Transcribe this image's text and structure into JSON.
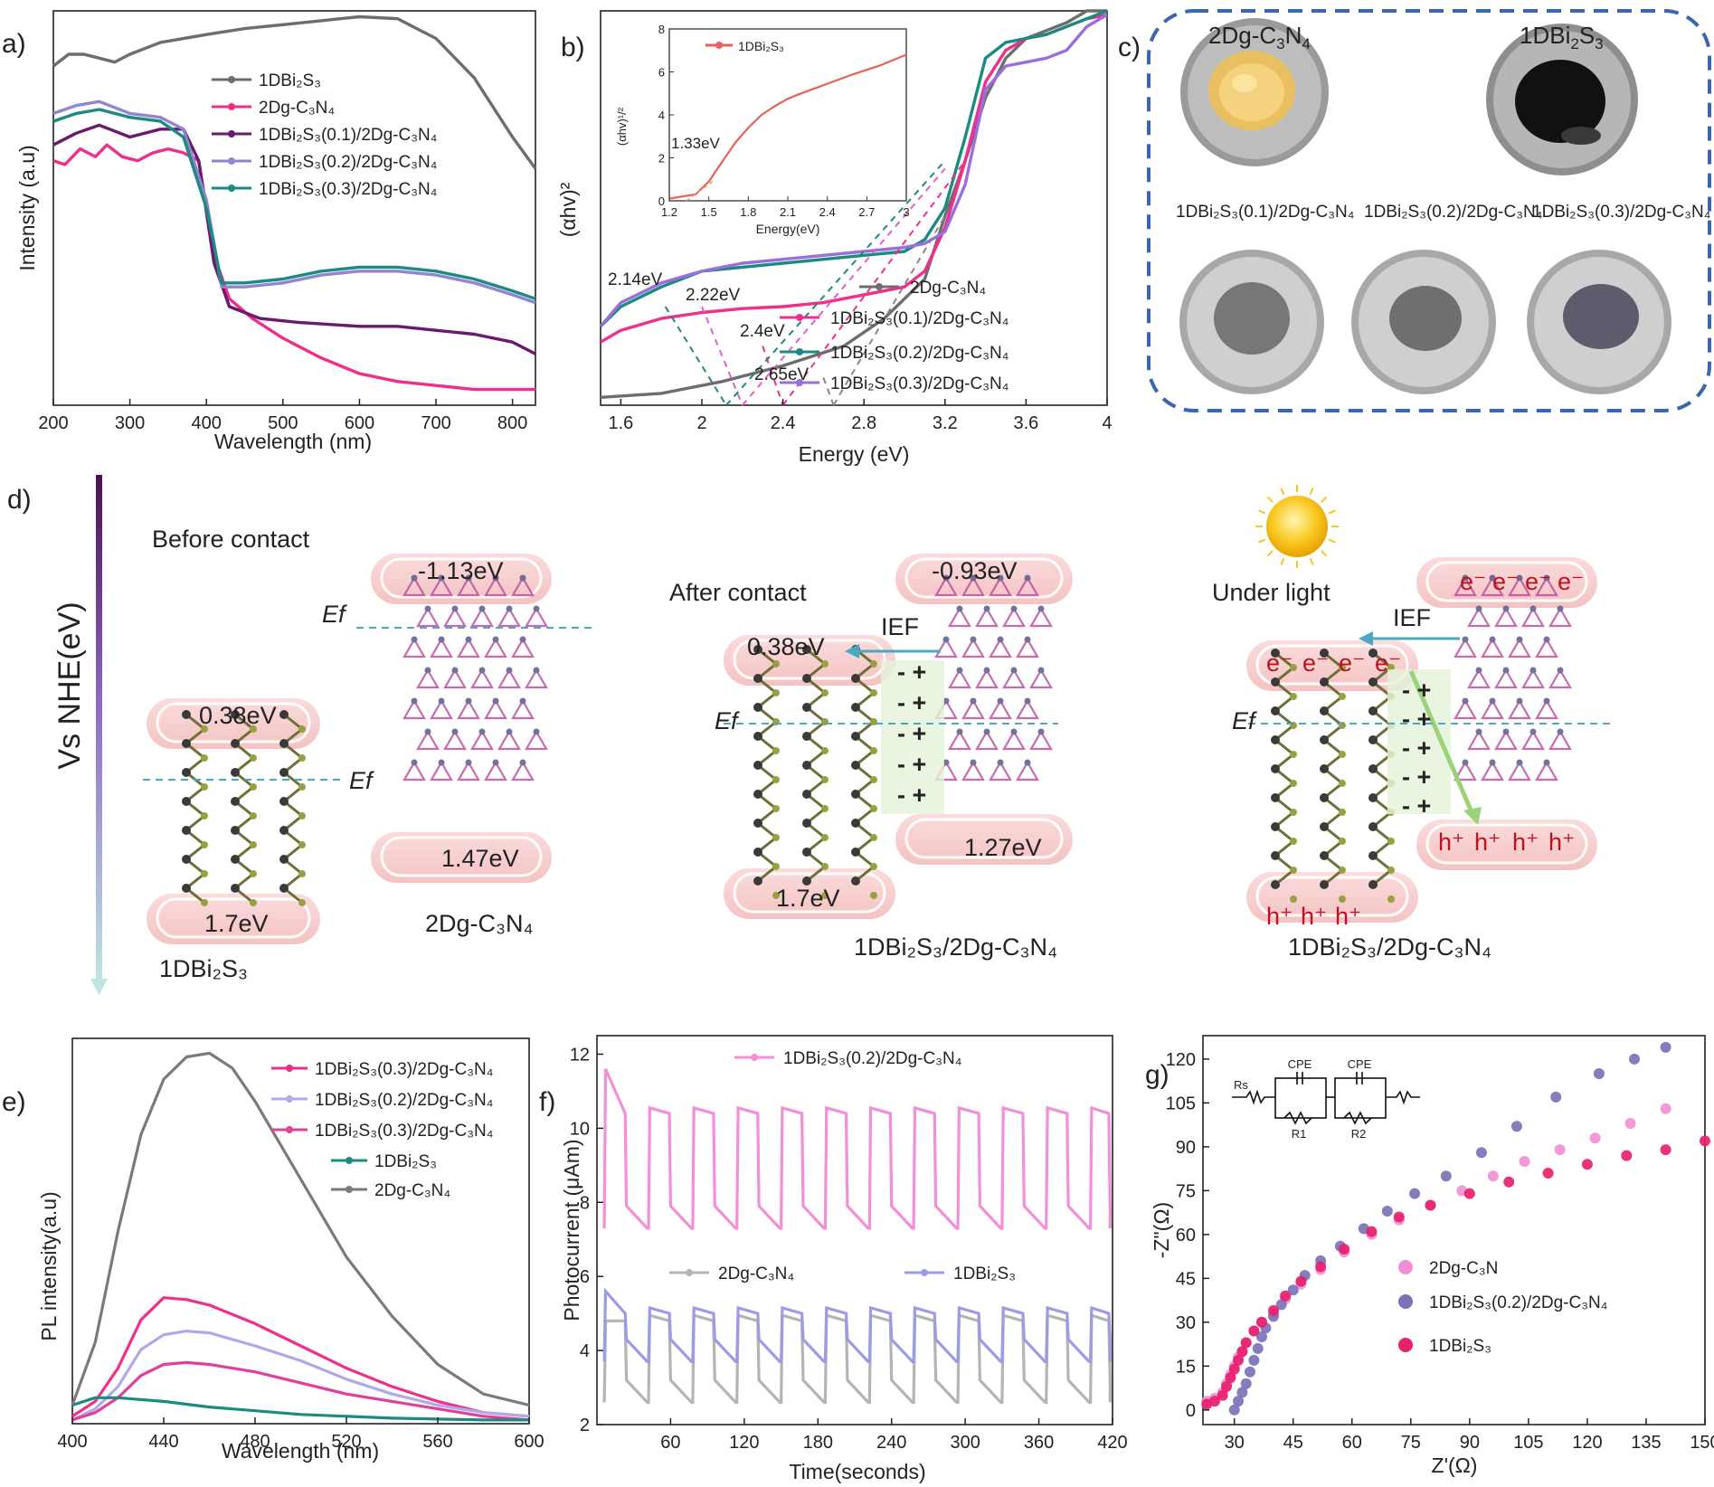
{
  "panels": {
    "a": "a)",
    "b": "b)",
    "c": "c)",
    "d": "d)",
    "e": "e)",
    "f": "f)",
    "g": "g)"
  },
  "colors": {
    "grey": "#6d6d6d",
    "pink": "#ef2f8b",
    "purple": "#6a1a6e",
    "lavender": "#8f86cf",
    "teal": "#1c8a80",
    "light_pink": "#f28fd6",
    "light_grey": "#b4b4b4",
    "light_purple": "#9b9be6",
    "mauve": "#7a73b8",
    "blue": "#3a66ad",
    "cyan": "#4aa8c0",
    "red": "#c0101e"
  },
  "panelA": {
    "xlabel": "Wavelength (nm)",
    "ylabel": "Intensity (a.u)"
  },
  "panelB": {
    "xlabel": "Energy (eV)",
    "ylabel": "(αhv)²",
    "annotations": [
      "2.14eV",
      "2.22eV",
      "2.4eV",
      "2.65eV"
    ],
    "inset": {
      "legend": "1DBi₂S₃",
      "ylabel": "(αhv)¹/²",
      "xlabel": "Energy(eV)",
      "annotation": "1.33eV"
    }
  },
  "panelC": {
    "photos": [
      "2Dg-C₃N₄",
      "1DBi₂S₃",
      "1DBi₂S₃(0.1)/2Dg-C₃N₄",
      "1DBi₂S₃(0.2)/2Dg-C₃N₄",
      "1DBi₂S₃(0.3)/2Dg-C₃N₄"
    ]
  },
  "panelD": {
    "axis_label": "Vs NHE(eV)",
    "before_contact": "Before contact",
    "after_contact": "After contact",
    "under_light": "Under light",
    "ief": "IEF",
    "ef": "Ef",
    "levels": {
      "bi2s3_cb": "0.38eV",
      "bi2s3_vb": "1.7eV",
      "c3n4_cb_before": "-1.13eV",
      "c3n4_vb_before": "1.47eV",
      "c3n4_cb_after": "-0.93eV",
      "c3n4_vb_after": "1.27eV"
    },
    "labels": {
      "bi2s3": "1DBi₂S₃",
      "c3n4": "2Dg-C₃N₄",
      "composite": "1DBi₂S₃/2Dg-C₃N₄"
    },
    "carriers": {
      "electron": "e⁻",
      "hole": "h⁺"
    }
  },
  "panelE": {
    "xlabel": "Wavelength (nm)",
    "ylabel": "PL intensity(a.u)"
  },
  "panelF": {
    "xlabel": "Time(seconds)",
    "ylabel": "Photocurrent (μAm)"
  },
  "panelG": {
    "xlabel": "Z'(Ω)",
    "ylabel": "-Z\"(Ω)",
    "circuit": {
      "rs": "Rs",
      "cpe": "CPE",
      "r1": "R1",
      "r2": "R2"
    }
  },
  "chart_data": [
    {
      "id": "a",
      "type": "line",
      "xlabel": "Wavelength (nm)",
      "ylabel": "Intensity (a.u)",
      "xlim": [
        200,
        830
      ],
      "ylim": [
        0,
        1
      ],
      "x_ticks": [
        200,
        300,
        400,
        500,
        600,
        700,
        800
      ],
      "series": [
        {
          "name": "1DBi₂S₃",
          "color": "#6d6d6d",
          "x": [
            200,
            220,
            240,
            260,
            280,
            300,
            340,
            400,
            450,
            500,
            550,
            600,
            650,
            700,
            750,
            800,
            830
          ],
          "y": [
            0.86,
            0.89,
            0.89,
            0.88,
            0.87,
            0.89,
            0.92,
            0.94,
            0.955,
            0.965,
            0.975,
            0.985,
            0.98,
            0.93,
            0.83,
            0.68,
            0.6
          ]
        },
        {
          "name": "2Dg-C₃N₄",
          "color": "#ef2f8b",
          "x": [
            200,
            215,
            235,
            255,
            270,
            290,
            310,
            330,
            350,
            370,
            390,
            410,
            430,
            460,
            500,
            550,
            600,
            650,
            700,
            750,
            800,
            830
          ],
          "y": [
            0.62,
            0.61,
            0.65,
            0.63,
            0.66,
            0.63,
            0.62,
            0.64,
            0.65,
            0.64,
            0.62,
            0.38,
            0.27,
            0.22,
            0.17,
            0.12,
            0.08,
            0.06,
            0.05,
            0.04,
            0.04,
            0.04
          ]
        },
        {
          "name": "1DBi₂S₃(0.1)/2Dg-C₃N₄",
          "color": "#6a1a6e",
          "x": [
            200,
            230,
            260,
            300,
            340,
            370,
            390,
            410,
            430,
            470,
            520,
            600,
            650,
            700,
            750,
            800,
            830
          ],
          "y": [
            0.66,
            0.69,
            0.71,
            0.68,
            0.7,
            0.7,
            0.62,
            0.36,
            0.25,
            0.22,
            0.21,
            0.2,
            0.2,
            0.19,
            0.18,
            0.16,
            0.13
          ]
        },
        {
          "name": "1DBi₂S₃(0.2)/2Dg-C₃N₄",
          "color": "#8f86cf",
          "x": [
            200,
            230,
            260,
            300,
            340,
            370,
            400,
            420,
            450,
            500,
            550,
            600,
            650,
            700,
            750,
            800,
            830
          ],
          "y": [
            0.74,
            0.76,
            0.77,
            0.74,
            0.73,
            0.7,
            0.52,
            0.3,
            0.3,
            0.31,
            0.33,
            0.34,
            0.34,
            0.33,
            0.31,
            0.28,
            0.26
          ]
        },
        {
          "name": "1DBi₂S₃(0.3)/2Dg-C₃N₄",
          "color": "#1c8a80",
          "x": [
            200,
            230,
            260,
            300,
            340,
            370,
            400,
            420,
            450,
            500,
            550,
            600,
            650,
            700,
            750,
            800,
            830
          ],
          "y": [
            0.72,
            0.74,
            0.75,
            0.73,
            0.72,
            0.68,
            0.5,
            0.31,
            0.31,
            0.32,
            0.34,
            0.35,
            0.35,
            0.34,
            0.32,
            0.29,
            0.27
          ]
        }
      ]
    },
    {
      "id": "b",
      "type": "line",
      "xlabel": "Energy (eV)",
      "ylabel": "(αhv)²",
      "xlim": [
        1.5,
        4.0
      ],
      "ylim": [
        0,
        1
      ],
      "x_ticks": [
        1.6,
        2.0,
        2.4,
        2.8,
        3.2,
        3.6,
        4.0
      ],
      "series": [
        {
          "name": "2Dg-C₃N₄",
          "color": "#6d6d6d",
          "x": [
            1.5,
            1.8,
            2.1,
            2.4,
            2.7,
            2.9,
            3.1,
            3.2,
            3.3,
            3.4,
            3.5,
            3.6,
            3.7,
            3.8,
            3.9,
            4.0
          ],
          "y": [
            0.02,
            0.03,
            0.06,
            0.1,
            0.15,
            0.22,
            0.32,
            0.48,
            0.62,
            0.78,
            0.88,
            0.93,
            0.95,
            0.97,
            1.0,
            1.0
          ]
        },
        {
          "name": "1DBi₂S₃(0.1)/2Dg-C₃N₄",
          "color": "#ef2f8b",
          "x": [
            1.5,
            1.6,
            1.8,
            2.0,
            2.2,
            2.4,
            2.6,
            2.8,
            3.0,
            3.1,
            3.2,
            3.3,
            3.4,
            3.5,
            3.6,
            3.7,
            3.8,
            3.9,
            4.0
          ],
          "y": [
            0.16,
            0.19,
            0.22,
            0.235,
            0.245,
            0.25,
            0.26,
            0.28,
            0.3,
            0.34,
            0.45,
            0.62,
            0.82,
            0.9,
            0.93,
            0.94,
            0.96,
            0.98,
            0.99
          ]
        },
        {
          "name": "1DBi₂S₃(0.2)/2Dg-C₃N₄",
          "color": "#1c8a80",
          "x": [
            1.5,
            1.6,
            1.8,
            2.0,
            2.2,
            2.4,
            2.6,
            2.8,
            3.0,
            3.1,
            3.2,
            3.3,
            3.4,
            3.5,
            3.6,
            3.7,
            3.8,
            3.9,
            4.0
          ],
          "y": [
            0.2,
            0.25,
            0.3,
            0.34,
            0.35,
            0.36,
            0.37,
            0.38,
            0.39,
            0.42,
            0.5,
            0.68,
            0.88,
            0.92,
            0.93,
            0.94,
            0.96,
            0.98,
            1.0
          ]
        },
        {
          "name": "1DBi₂S₃(0.3)/2Dg-C₃N₄",
          "color": "#9b6ee0",
          "x": [
            1.5,
            1.6,
            1.8,
            2.0,
            2.2,
            2.4,
            2.6,
            2.8,
            3.0,
            3.1,
            3.2,
            3.3,
            3.4,
            3.5,
            3.6,
            3.7,
            3.8,
            3.9,
            4.0
          ],
          "y": [
            0.2,
            0.26,
            0.31,
            0.34,
            0.36,
            0.37,
            0.38,
            0.39,
            0.4,
            0.41,
            0.44,
            0.56,
            0.8,
            0.86,
            0.87,
            0.88,
            0.9,
            0.96,
            0.99
          ]
        }
      ],
      "inset": {
        "type": "line",
        "xlim": [
          1.2,
          3.0
        ],
        "ylim": [
          0,
          8
        ],
        "x_ticks": [
          1.2,
          1.5,
          1.8,
          2.1,
          2.4,
          2.7,
          3.0
        ],
        "y_ticks": [
          0,
          2,
          4,
          6,
          8
        ],
        "series": [
          {
            "name": "1DBi₂S₃",
            "color": "#e8605a",
            "x": [
              1.2,
              1.4,
              1.5,
              1.6,
              1.7,
              1.8,
              1.9,
              2.0,
              2.1,
              2.2,
              2.4,
              2.6,
              2.8,
              3.0
            ],
            "y": [
              0.1,
              0.3,
              0.9,
              1.8,
              2.7,
              3.4,
              4.0,
              4.4,
              4.75,
              5.0,
              5.45,
              5.9,
              6.3,
              6.8
            ]
          }
        ]
      }
    },
    {
      "id": "e",
      "type": "line",
      "xlabel": "Wavelength (nm)",
      "ylabel": "PL intensity(a.u)",
      "xlim": [
        400,
        600
      ],
      "ylim": [
        0,
        1
      ],
      "x_ticks": [
        400,
        440,
        480,
        520,
        560,
        600
      ],
      "series": [
        {
          "name": "1DBi₂S₃(0.3)/2Dg-C₃N₄",
          "color": "#ef2f8b",
          "x": [
            400,
            410,
            420,
            430,
            440,
            450,
            460,
            480,
            500,
            520,
            540,
            560,
            580,
            600
          ],
          "y": [
            0.02,
            0.06,
            0.15,
            0.28,
            0.34,
            0.335,
            0.32,
            0.27,
            0.21,
            0.15,
            0.1,
            0.06,
            0.03,
            0.02
          ]
        },
        {
          "name": "1DBi₂S₃(0.2)/2Dg-C₃N₄",
          "color": "#b0a8e8",
          "x": [
            400,
            410,
            420,
            430,
            440,
            450,
            460,
            480,
            500,
            520,
            540,
            560,
            580,
            600
          ],
          "y": [
            0.01,
            0.04,
            0.1,
            0.2,
            0.24,
            0.25,
            0.245,
            0.21,
            0.17,
            0.12,
            0.08,
            0.05,
            0.03,
            0.02
          ]
        },
        {
          "name": "1DBi₂S₃(0.3)/2Dg-C₃N₄",
          "color": "#e0409a",
          "x": [
            400,
            410,
            420,
            430,
            440,
            450,
            460,
            480,
            500,
            520,
            540,
            560,
            580,
            600
          ],
          "y": [
            0.01,
            0.03,
            0.07,
            0.13,
            0.16,
            0.165,
            0.16,
            0.14,
            0.11,
            0.08,
            0.06,
            0.04,
            0.02,
            0.01
          ]
        },
        {
          "name": "1DBi₂S₃",
          "color": "#1c8a80",
          "x": [
            400,
            410,
            420,
            440,
            460,
            480,
            500,
            540,
            580,
            600
          ],
          "y": [
            0.05,
            0.07,
            0.07,
            0.06,
            0.045,
            0.035,
            0.025,
            0.015,
            0.01,
            0.01
          ]
        },
        {
          "name": "2Dg-C₃N₄",
          "color": "#7a7a7a",
          "x": [
            400,
            410,
            420,
            430,
            440,
            450,
            460,
            470,
            480,
            500,
            520,
            540,
            560,
            580,
            600
          ],
          "y": [
            0.05,
            0.22,
            0.52,
            0.78,
            0.93,
            0.99,
            1.0,
            0.96,
            0.87,
            0.66,
            0.45,
            0.29,
            0.16,
            0.08,
            0.05
          ]
        }
      ]
    },
    {
      "id": "f",
      "type": "line",
      "xlabel": "Time(seconds)",
      "ylabel": "Photocurrent (μAm)",
      "xlim": [
        0,
        420
      ],
      "ylim": [
        2,
        12.5
      ],
      "x_ticks": [
        60,
        120,
        180,
        240,
        300,
        360,
        420
      ],
      "y_ticks": [
        2,
        4,
        6,
        8,
        10,
        12
      ],
      "series": [
        {
          "name": "1DBi₂S₃(0.2)/2Dg-C₃N₄",
          "color": "#f28fd6",
          "on_level": 10.4,
          "off_level": 7.3,
          "period_s": 36
        },
        {
          "name": "2Dg-C₃N₄",
          "color": "#b4b4b4",
          "on_level": 4.8,
          "off_level": 2.6,
          "period_s": 36
        },
        {
          "name": "1DBi₂S₃",
          "color": "#9b9be6",
          "on_level": 5.0,
          "off_level": 3.7,
          "period_s": 36
        }
      ]
    },
    {
      "id": "g",
      "type": "scatter",
      "xlabel": "Z'(Ω)",
      "ylabel": "-Z\"(Ω)",
      "xlim": [
        22,
        150
      ],
      "ylim": [
        -5,
        128
      ],
      "x_ticks": [
        30,
        45,
        60,
        75,
        90,
        105,
        120,
        135,
        150
      ],
      "y_ticks": [
        0,
        15,
        30,
        45,
        60,
        75,
        90,
        105,
        120
      ],
      "series": [
        {
          "name": "2Dg-C₃N",
          "color": "#f28fd6",
          "x": [
            23,
            25,
            27,
            28,
            29,
            30,
            31,
            32,
            33,
            35,
            37,
            40,
            43,
            47,
            52,
            58,
            65,
            72,
            80,
            88,
            96,
            104,
            113,
            122,
            131,
            140
          ],
          "y": [
            3,
            4,
            6,
            9,
            12,
            15,
            18,
            20,
            23,
            27,
            30,
            33,
            38,
            43,
            48,
            54,
            60,
            65,
            70,
            75,
            80,
            85,
            89,
            93,
            98,
            103
          ]
        },
        {
          "name": "1DBi₂S₃(0.2)/2Dg-C₃N₄",
          "color": "#7a73b8",
          "x": [
            30,
            31,
            32,
            33,
            34,
            35,
            36,
            37,
            38,
            40,
            42,
            45,
            48,
            52,
            57,
            63,
            69,
            76,
            84,
            93,
            102,
            112,
            123,
            132,
            140
          ],
          "y": [
            0,
            3,
            6,
            9,
            13,
            17,
            21,
            25,
            28,
            32,
            36,
            41,
            46,
            51,
            56,
            62,
            68,
            74,
            80,
            88,
            97,
            107,
            115,
            120,
            124
          ]
        },
        {
          "name": "1DBi₂S₃",
          "color": "#e8206e",
          "x": [
            23,
            25,
            27,
            28,
            29,
            30,
            31,
            32,
            33,
            35,
            37,
            40,
            43,
            47,
            52,
            58,
            65,
            72,
            80,
            90,
            100,
            110,
            120,
            130,
            140,
            150
          ],
          "y": [
            2,
            3,
            5,
            8,
            11,
            14,
            17,
            20,
            23,
            27,
            30,
            34,
            39,
            44,
            49,
            55,
            61,
            66,
            70,
            74,
            78,
            81,
            84,
            87,
            89,
            92
          ]
        }
      ]
    }
  ]
}
